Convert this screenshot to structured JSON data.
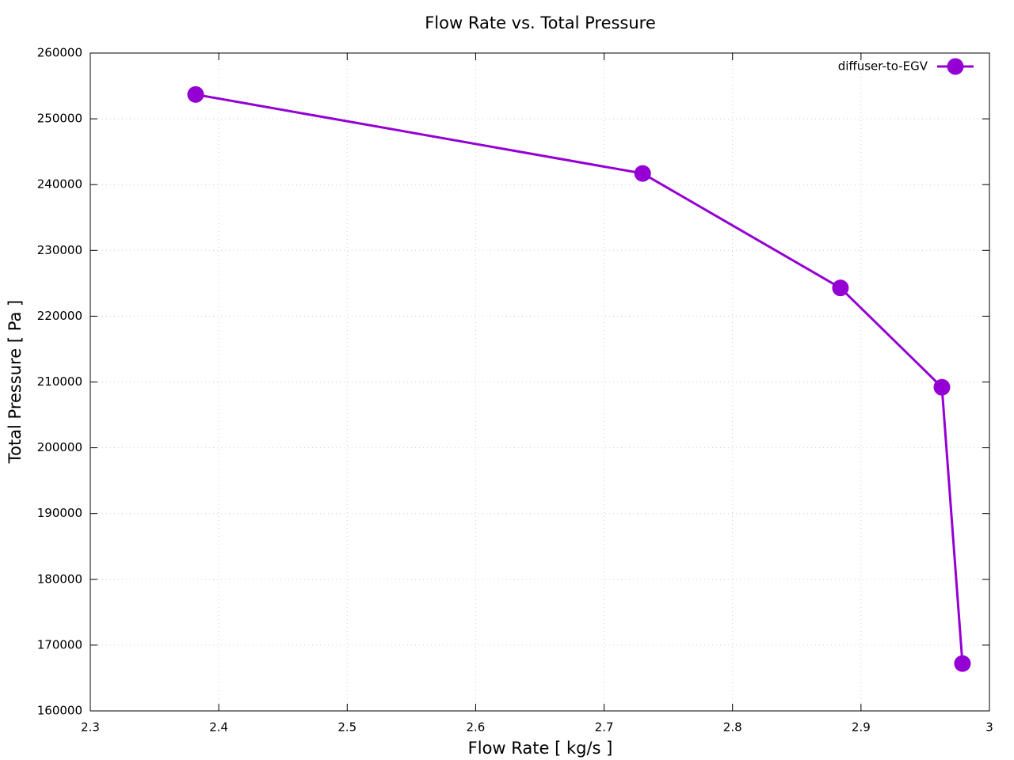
{
  "chart_data": {
    "type": "line",
    "title": "Flow Rate vs. Total Pressure",
    "x_label": "Flow Rate [ kg/s ]",
    "y_label": "Total Pressure [ Pa ]",
    "series": [
      {
        "name": "diffuser-to-EGV",
        "color": "#9400d3",
        "x": [
          2.382,
          2.73,
          2.884,
          2.963,
          2.979
        ],
        "values": [
          253700,
          241700,
          224300,
          209200,
          167200
        ]
      }
    ],
    "xlim": [
      2.3,
      3
    ],
    "xticks": [
      2.3,
      2.4,
      2.5,
      2.6,
      2.7,
      2.8,
      2.9,
      3
    ],
    "ylim": [
      160000,
      260000
    ],
    "yticks": [
      160000,
      170000,
      180000,
      190000,
      200000,
      210000,
      220000,
      230000,
      240000,
      250000,
      260000
    ],
    "grid": true,
    "legend": "top-right"
  }
}
